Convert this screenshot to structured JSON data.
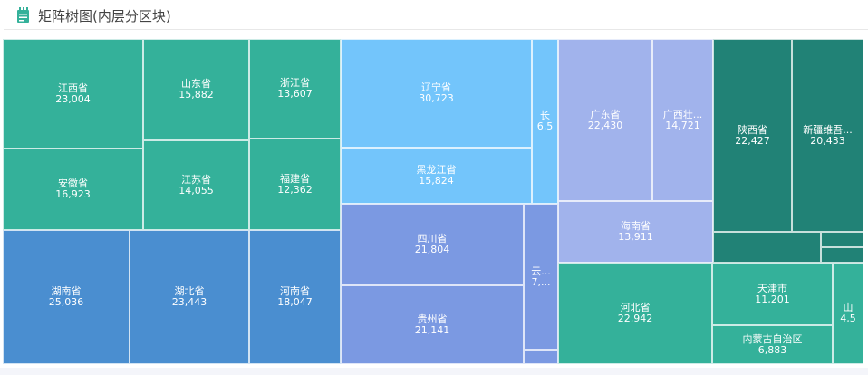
{
  "header": {
    "title": "矩阵树图(内层分区块)",
    "icon": "notepad-icon",
    "icon_color": "#34b19a"
  },
  "chart_data": {
    "type": "treemap",
    "title": "矩阵树图(内层分区块)",
    "colors": {
      "teal": "#34b19a",
      "blue": "#4a8ed0",
      "lightblue": "#73c5fb",
      "purple": "#7b99e2",
      "lavender": "#a1b3ec",
      "darkteal": "#218276"
    },
    "cells": [
      {
        "name": "江西省",
        "value": "23,004",
        "group": "teal"
      },
      {
        "name": "安徽省",
        "value": "16,923",
        "group": "teal"
      },
      {
        "name": "山东省",
        "value": "15,882",
        "group": "teal"
      },
      {
        "name": "江苏省",
        "value": "14,055",
        "group": "teal"
      },
      {
        "name": "浙江省",
        "value": "13,607",
        "group": "teal"
      },
      {
        "name": "福建省",
        "value": "12,362",
        "group": "teal"
      },
      {
        "name": "湖南省",
        "value": "25,036",
        "group": "blue"
      },
      {
        "name": "湖北省",
        "value": "23,443",
        "group": "blue"
      },
      {
        "name": "河南省",
        "value": "18,047",
        "group": "blue"
      },
      {
        "name": "辽宁省",
        "value": "30,723",
        "group": "lightblue"
      },
      {
        "name": "黑龙江省",
        "value": "15,824",
        "group": "lightblue"
      },
      {
        "name": "长",
        "value": "6,5",
        "group": "lightblue"
      },
      {
        "name": "四川省",
        "value": "21,804",
        "group": "purple"
      },
      {
        "name": "贵州省",
        "value": "21,141",
        "group": "purple"
      },
      {
        "name": "云...",
        "value": "7,...",
        "group": "purple"
      },
      {
        "name": "",
        "value": "",
        "group": "purple"
      },
      {
        "name": "广东省",
        "value": "22,430",
        "group": "lavender"
      },
      {
        "name": "广西壮...",
        "value": "14,721",
        "group": "lavender"
      },
      {
        "name": "海南省",
        "value": "13,911",
        "group": "lavender"
      },
      {
        "name": "陕西省",
        "value": "22,427",
        "group": "darkteal"
      },
      {
        "name": "新疆维吾...",
        "value": "20,433",
        "group": "darkteal"
      },
      {
        "name": "",
        "value": "",
        "group": "darkteal"
      },
      {
        "name": "",
        "value": "",
        "group": "darkteal"
      },
      {
        "name": "",
        "value": "",
        "group": "darkteal"
      },
      {
        "name": "河北省",
        "value": "22,942",
        "group": "teal"
      },
      {
        "name": "天津市",
        "value": "11,201",
        "group": "teal"
      },
      {
        "name": "内蒙古自治区",
        "value": "6,883",
        "group": "teal"
      },
      {
        "name": "山",
        "value": "4,5",
        "group": "teal"
      }
    ]
  }
}
